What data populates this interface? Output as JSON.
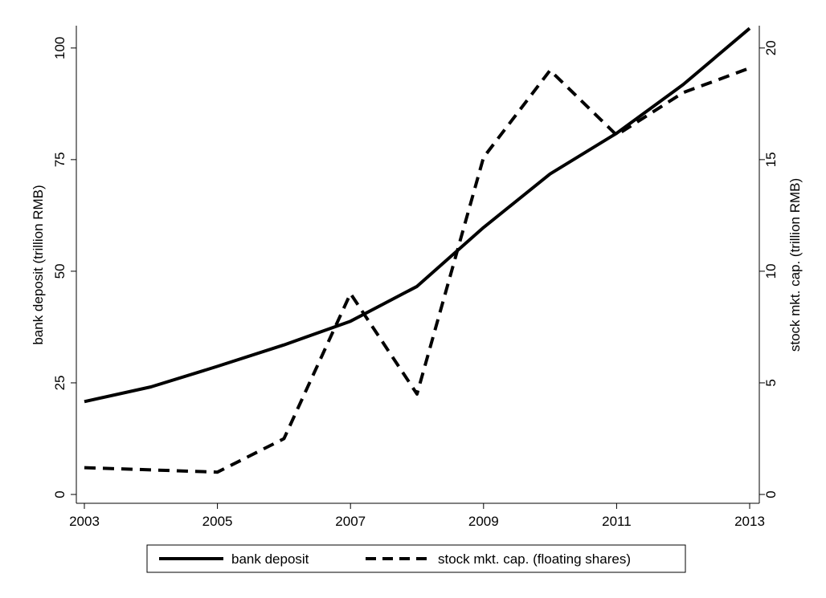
{
  "chart_data": {
    "type": "line",
    "title": "",
    "xlabel": "",
    "x": [
      2003,
      2004,
      2005,
      2006,
      2007,
      2008,
      2009,
      2010,
      2011,
      2012,
      2013
    ],
    "x_ticks": [
      2003,
      2005,
      2007,
      2009,
      2011,
      2013
    ],
    "x_tick_labels": [
      "2003",
      "2005",
      "2007",
      "2009",
      "2011",
      "2013"
    ],
    "xlim": [
      2003,
      2013
    ],
    "y_left": {
      "label": "bank deposit (trillion RMB)",
      "lim": [
        0,
        105
      ],
      "ticks": [
        0,
        25,
        50,
        75,
        100
      ],
      "tick_labels": [
        "0",
        "25",
        "50",
        "75",
        "100"
      ]
    },
    "y_right": {
      "label": "stock mkt. cap. (trillion RMB)",
      "lim": [
        0,
        21
      ],
      "ticks": [
        0,
        5,
        10,
        15,
        20
      ],
      "tick_labels": [
        "0",
        "5",
        "10",
        "15",
        "20"
      ]
    },
    "series": [
      {
        "name": "bank deposit",
        "axis": "left",
        "style": "solid",
        "color": "#000000",
        "values": [
          20.8,
          24.1,
          28.7,
          33.5,
          38.8,
          46.6,
          59.8,
          71.8,
          80.9,
          91.8,
          104.4
        ]
      },
      {
        "name": "stock mkt. cap. (floating shares)",
        "axis": "right",
        "style": "dashed",
        "color": "#000000",
        "values": [
          1.2,
          1.1,
          1.0,
          2.5,
          9.0,
          4.5,
          15.1,
          19.0,
          16.1,
          18.0,
          19.1
        ]
      }
    ],
    "grid": false,
    "legend_position": "bottom"
  }
}
